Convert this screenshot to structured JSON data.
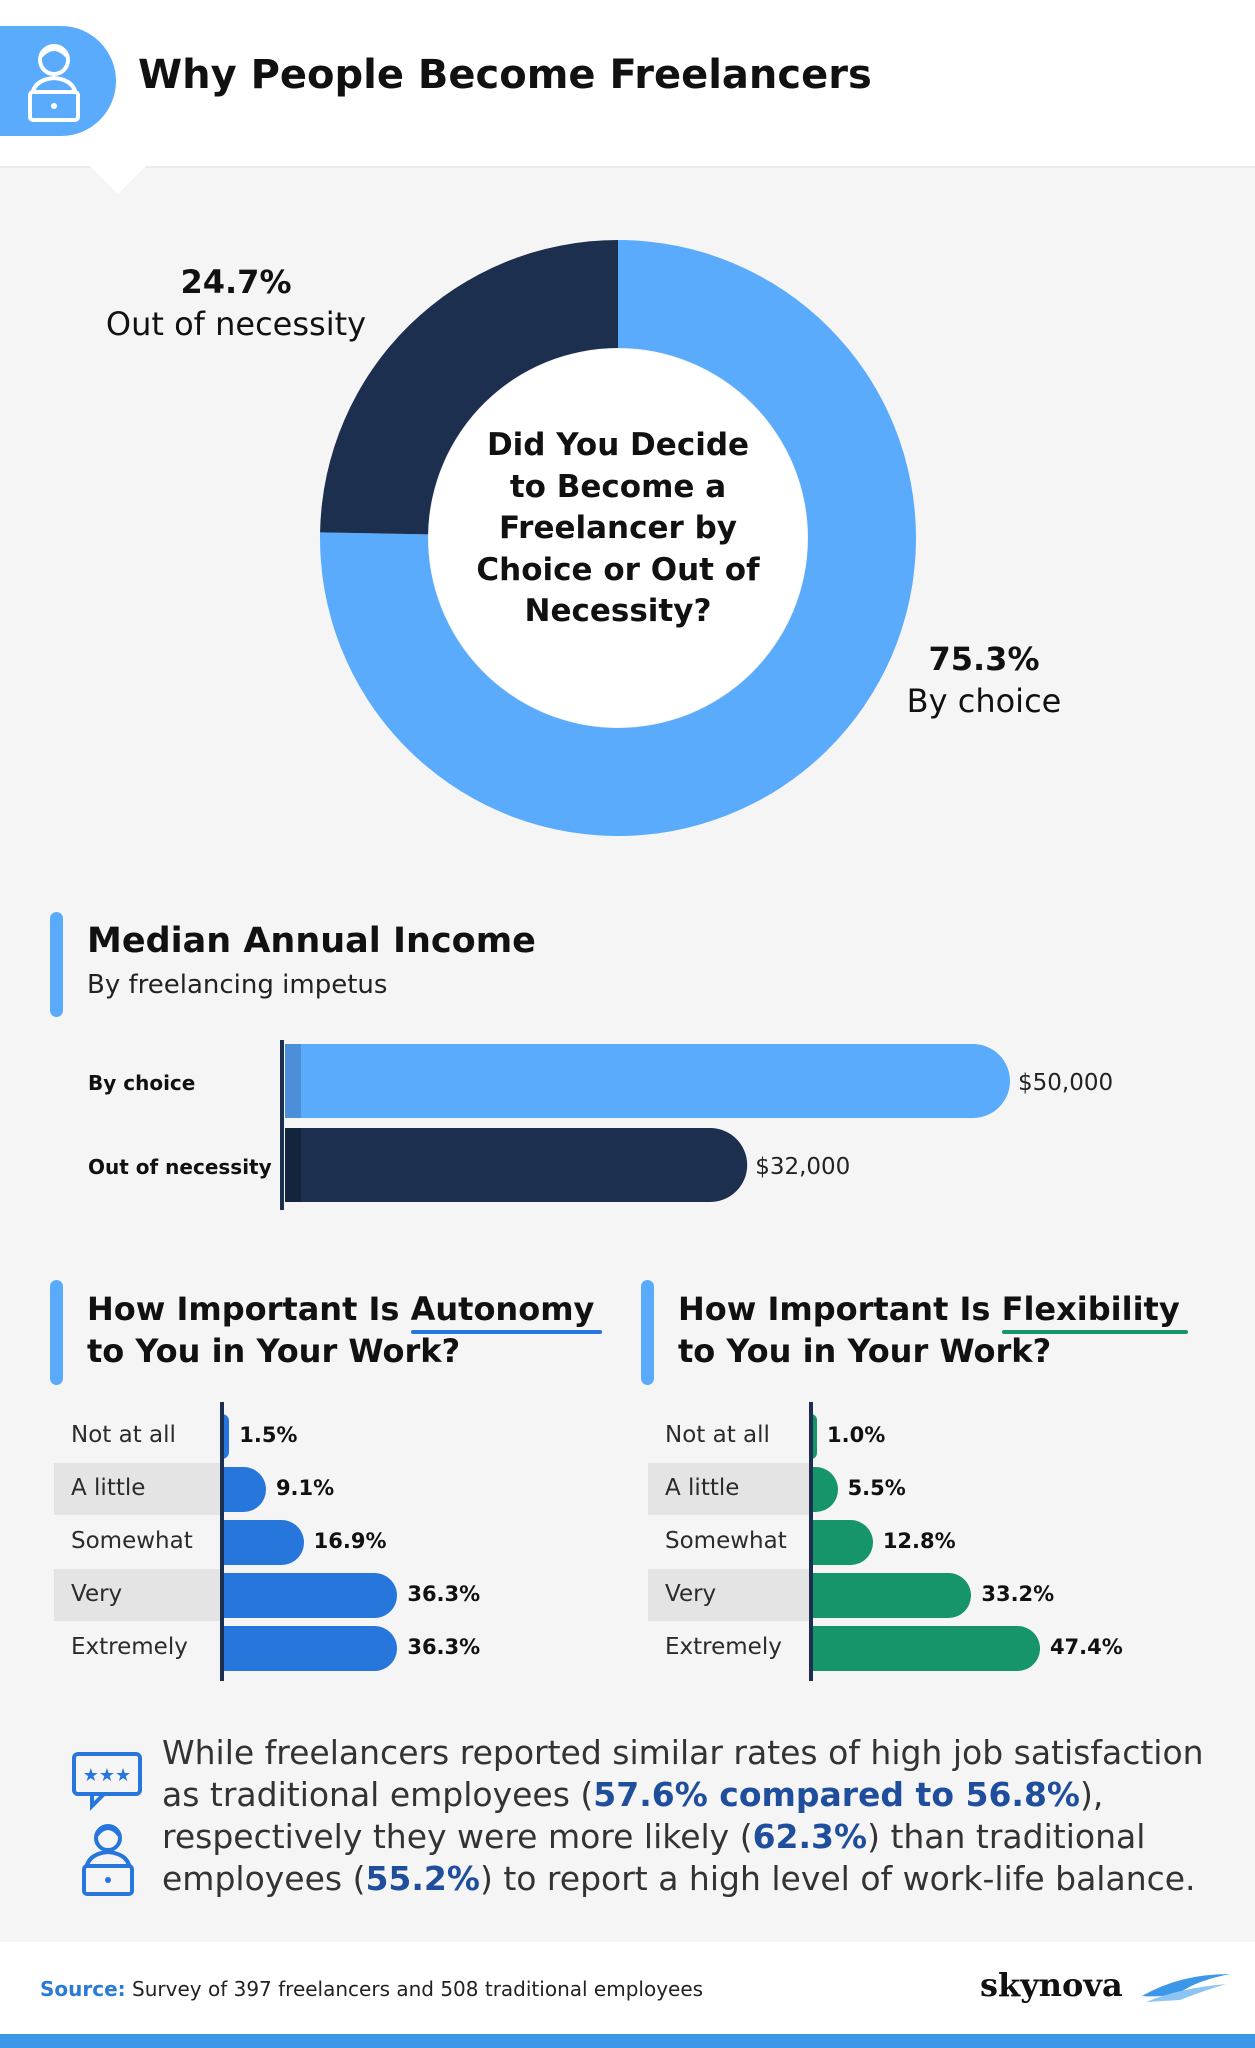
{
  "header": {
    "title": "Why People Become Freelancers"
  },
  "colors": {
    "light_blue": "#5aabfb",
    "navy": "#1d2f4e",
    "blue": "#2676db",
    "green": "#16946a",
    "highlight": "#1f4e9c"
  },
  "donut": {
    "center_text": "Did You Decide to Become a Freelancer by Choice or Out of Necessity?",
    "center_lines": [
      "Did You Decide",
      "to Become a",
      "Freelancer by",
      "Choice or Out of",
      "Necessity?"
    ],
    "necessity": {
      "pct": "24.7%",
      "label": "Out of necessity"
    },
    "choice": {
      "pct": "75.3%",
      "label": "By choice"
    }
  },
  "income": {
    "title": "Median Annual Income",
    "subtitle": "By freelancing impetus",
    "rows": [
      {
        "label": "By choice",
        "value_text": "$50,000"
      },
      {
        "label": "Out of necessity",
        "value_text": "$32,000"
      }
    ]
  },
  "autonomy": {
    "title_pre": "How Important Is ",
    "title_key": "Autonomy",
    "title_post": "to You in Your Work?",
    "rows": [
      {
        "label": "Not at all",
        "pct": "1.5%"
      },
      {
        "label": "A little",
        "pct": "9.1%"
      },
      {
        "label": "Somewhat",
        "pct": "16.9%"
      },
      {
        "label": "Very",
        "pct": "36.3%"
      },
      {
        "label": "Extremely",
        "pct": "36.3%"
      }
    ]
  },
  "flexibility": {
    "title_pre": "How Important Is ",
    "title_key": "Flexibility",
    "title_post": "to You in Your Work?",
    "rows": [
      {
        "label": "Not at all",
        "pct": "1.0%"
      },
      {
        "label": "A little",
        "pct": "5.5%"
      },
      {
        "label": "Somewhat",
        "pct": "12.8%"
      },
      {
        "label": "Very",
        "pct": "33.2%"
      },
      {
        "label": "Extremely",
        "pct": "47.4%"
      }
    ]
  },
  "note": {
    "t1": "While freelancers reported similar rates of high job satisfaction as traditional employees (",
    "h1": "57.6% compared to 56.8%",
    "t2": "), respectively they were more likely (",
    "h2": "62.3%",
    "t3": ") than traditional employees (",
    "h3": "55.2%",
    "t4": ") to report a high level of work-life balance."
  },
  "footer": {
    "source_label": "Source:",
    "source_text": "Survey of 397 freelancers and 508 traditional employees",
    "brand": "skynova"
  },
  "chart_data": [
    {
      "type": "pie",
      "title": "Did You Decide to Become a Freelancer by Choice or Out of Necessity?",
      "categories": [
        "By choice",
        "Out of necessity"
      ],
      "values": [
        75.3,
        24.7
      ]
    },
    {
      "type": "bar",
      "title": "Median Annual Income",
      "subtitle": "By freelancing impetus",
      "categories": [
        "By choice",
        "Out of necessity"
      ],
      "values": [
        50000,
        32000
      ],
      "xlim": [
        0,
        50000
      ]
    },
    {
      "type": "bar",
      "title": "How Important Is Autonomy to You in Your Work?",
      "categories": [
        "Not at all",
        "A little",
        "Somewhat",
        "Very",
        "Extremely"
      ],
      "values": [
        1.5,
        9.1,
        16.9,
        36.3,
        36.3
      ]
    },
    {
      "type": "bar",
      "title": "How Important Is Flexibility to You in Your Work?",
      "categories": [
        "Not at all",
        "A little",
        "Somewhat",
        "Very",
        "Extremely"
      ],
      "values": [
        1.0,
        5.5,
        12.8,
        33.2,
        47.4
      ]
    }
  ]
}
